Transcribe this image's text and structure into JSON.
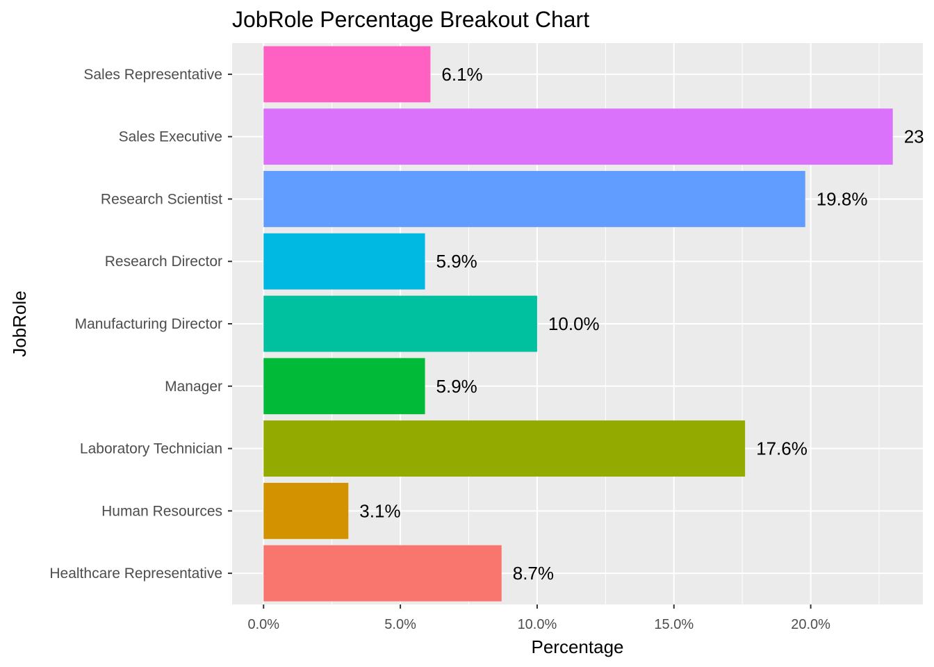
{
  "chart_data": {
    "type": "bar",
    "orientation": "horizontal",
    "title": "JobRole Percentage Breakout Chart",
    "xlabel": "Percentage",
    "ylabel": "JobRole",
    "categories": [
      "Healthcare Representative",
      "Human Resources",
      "Laboratory Technician",
      "Manager",
      "Manufacturing Director",
      "Research Director",
      "Research Scientist",
      "Sales Executive",
      "Sales Representative"
    ],
    "values": [
      8.7,
      3.1,
      17.6,
      5.9,
      10.0,
      5.9,
      19.8,
      23.0,
      6.1
    ],
    "data_labels": [
      "8.7%",
      "3.1%",
      "17.6%",
      "5.9%",
      "10.0%",
      "5.9%",
      "19.8%",
      "23",
      "6.1%"
    ],
    "colors": [
      "#F8766D",
      "#D39200",
      "#93AA00",
      "#00BA38",
      "#00C19F",
      "#00B9E3",
      "#619CFF",
      "#DB72FB",
      "#FF61C3"
    ],
    "xticks": [
      0,
      5,
      10,
      15,
      20
    ],
    "xtick_labels": [
      "0.0%",
      "5.0%",
      "10.0%",
      "15.0%",
      "20.0%"
    ],
    "xlim": [
      -1.15,
      24.1
    ],
    "grid": true,
    "legend": "none",
    "panel_background": "#EBEBEB",
    "grid_color": "#FFFFFF"
  }
}
